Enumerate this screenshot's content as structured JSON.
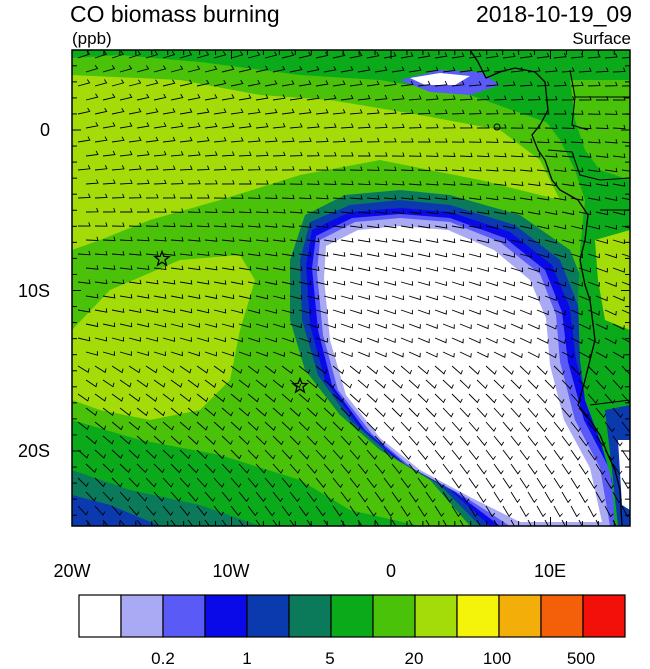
{
  "title_left": "CO biomass burning",
  "title_right": "2018-10-19_09",
  "units": "(ppb)",
  "level": "Surface",
  "lat_labels": [
    "0",
    "10S",
    "20S"
  ],
  "lon_labels": [
    "20W",
    "10W",
    "0",
    "10E"
  ],
  "colorbar": {
    "colors": [
      "#ffffff",
      "#aaaaf4",
      "#5a5af6",
      "#0a0ae8",
      "#0a3aae",
      "#0a7a5a",
      "#0aaa1a",
      "#4ac20a",
      "#a4dc0a",
      "#f4f40a",
      "#f4ae0a",
      "#f4600a",
      "#f4100a"
    ],
    "labels": [
      "0.2",
      "1",
      "5",
      "20",
      "100",
      "500"
    ]
  },
  "markers": [
    {
      "name": "star-1",
      "symbol": "star"
    },
    {
      "name": "star-2",
      "symbol": "star"
    }
  ]
}
